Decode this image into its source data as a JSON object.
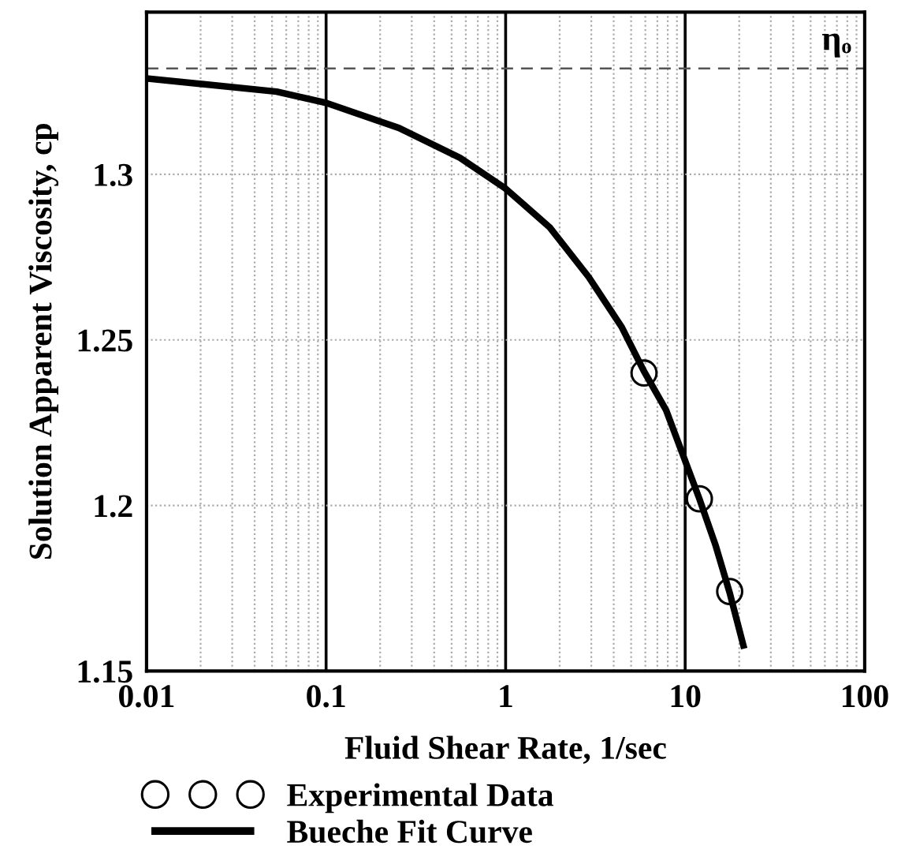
{
  "chart_data": {
    "type": "line",
    "xlabel": "Fluid Shear Rate, 1/sec",
    "ylabel": "Solution Apparent Viscosity, cp",
    "log": "x",
    "xlim": [
      0.01,
      100
    ],
    "ylim": [
      1.15,
      1.349
    ],
    "xticks": [
      0.01,
      0.1,
      1,
      10,
      100,
      {
        "value": 0.02,
        "label": null
      },
      {
        "value": 0.03,
        "label": null
      },
      {
        "value": 0.04,
        "label": null
      },
      {
        "value": 0.05,
        "label": null
      },
      {
        "value": 0.06,
        "label": null
      },
      {
        "value": 0.07,
        "label": null
      },
      {
        "value": 0.08,
        "label": null
      },
      {
        "value": 0.09,
        "label": null
      },
      {
        "value": 0.2,
        "label": null
      },
      {
        "value": 0.3,
        "label": null
      },
      {
        "value": 0.4,
        "label": null
      },
      {
        "value": 0.5,
        "label": null
      },
      {
        "value": 0.6,
        "label": null
      },
      {
        "value": 0.7,
        "label": null
      },
      {
        "value": 0.8,
        "label": null
      },
      {
        "value": 0.9,
        "label": null
      },
      {
        "value": 2,
        "label": null
      },
      {
        "value": 3,
        "label": null
      },
      {
        "value": 4,
        "label": null
      },
      {
        "value": 5,
        "label": null
      },
      {
        "value": 6,
        "label": null
      },
      {
        "value": 7,
        "label": null
      },
      {
        "value": 8,
        "label": null
      },
      {
        "value": 9,
        "label": null
      },
      {
        "value": 20,
        "label": null
      },
      {
        "value": 30,
        "label": null
      },
      {
        "value": 40,
        "label": null
      },
      {
        "value": 50,
        "label": null
      },
      {
        "value": 60,
        "label": null
      },
      {
        "value": 70,
        "label": null
      },
      {
        "value": 80,
        "label": null
      },
      {
        "value": 90,
        "label": null
      }
    ],
    "yticks": [
      1.15,
      1.2,
      1.25,
      1.3
    ],
    "grid": true,
    "legend": "bottom",
    "ref_lines": [
      {
        "axis": "y",
        "value": 1.332,
        "label": "ηₒ",
        "color": "#555555",
        "line_style": "dashed"
      }
    ],
    "series": [
      {
        "name": "Experimental Data",
        "type": "scatter",
        "marker": "circle",
        "color": "#000000",
        "x": [
          5.9,
          12.0,
          17.7
        ],
        "values": [
          1.24,
          1.202,
          1.174
        ]
      },
      {
        "name": "Bueche Fit Curve",
        "marker": "none",
        "color": "#000000",
        "x": [
          0.01,
          0.053,
          0.1,
          0.255,
          0.557,
          1,
          1.76,
          2.9,
          4.44,
          5.9,
          7.83,
          9.7,
          12,
          14.8,
          17.7,
          21.1
        ],
        "values": [
          1.329,
          1.325,
          1.3216,
          1.314,
          1.305,
          1.2957,
          1.284,
          1.269,
          1.2538,
          1.2405,
          1.2288,
          1.2154,
          1.202,
          1.1878,
          1.1736,
          1.1577
        ]
      }
    ]
  }
}
